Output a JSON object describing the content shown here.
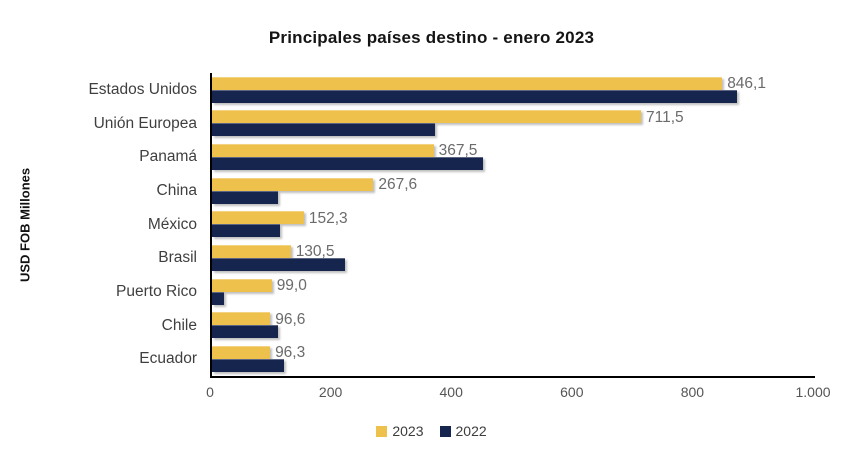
{
  "title": "Principales países destino - enero 2023",
  "y_axis_label": "USD FOB Millones",
  "colors": {
    "series_2023": "#EEC14D",
    "series_2022": "#16254E",
    "axis": "#000000",
    "title_text": "#141414",
    "category_label": "#3F3F3F",
    "value_label": "#6B6B6B",
    "tick_label": "#555555",
    "background": "#FFFFFF"
  },
  "legend": {
    "position": "bottom",
    "items": [
      {
        "label": "2023",
        "color": "#EEC14D"
      },
      {
        "label": "2022",
        "color": "#16254E"
      }
    ]
  },
  "chart_data": {
    "type": "bar",
    "orientation": "horizontal",
    "title": "Principales países destino - enero 2023",
    "ylabel": "USD FOB Millones",
    "xlabel": "",
    "xlim": [
      0,
      1000
    ],
    "grid": false,
    "legend_position": "bottom",
    "x_ticks": [
      {
        "value": 0,
        "label": "0"
      },
      {
        "value": 200,
        "label": "200"
      },
      {
        "value": 400,
        "label": "400"
      },
      {
        "value": 600,
        "label": "600"
      },
      {
        "value": 800,
        "label": "800"
      },
      {
        "value": 1000,
        "label": "1.000"
      }
    ],
    "categories": [
      "Estados Unidos",
      "Unión Europea",
      "Panamá",
      "China",
      "México",
      "Brasil",
      "Puerto Rico",
      "Chile",
      "Ecuador"
    ],
    "series": [
      {
        "name": "2023",
        "color": "#EEC14D",
        "values": [
          846.1,
          711.5,
          367.5,
          267.6,
          152.3,
          130.5,
          99.0,
          96.6,
          96.3
        ],
        "value_labels": [
          "846,1",
          "711,5",
          "367,5",
          "267,6",
          "152,3",
          "130,5",
          "99,0",
          "96,6",
          "96,3"
        ],
        "labels_shown": true
      },
      {
        "name": "2022",
        "color": "#16254E",
        "values": [
          870,
          370,
          450,
          110,
          113,
          220,
          20,
          110,
          120
        ],
        "value_labels": [],
        "labels_shown": false
      }
    ]
  }
}
